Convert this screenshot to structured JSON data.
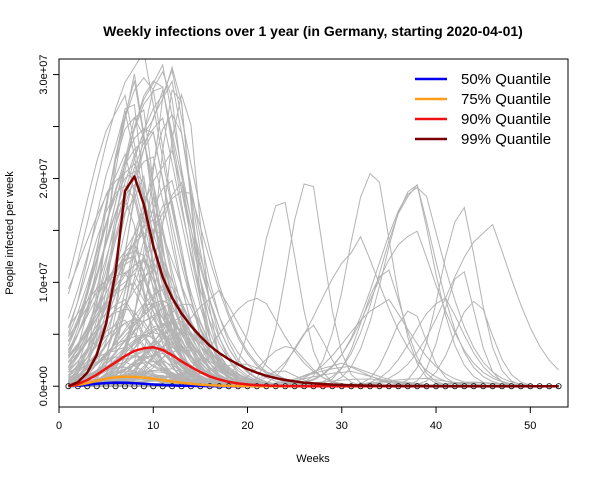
{
  "chart_data": {
    "type": "line",
    "title": "Weekly infections over 1 year (in Germany, starting 2020-04-01)",
    "xlabel": "Weeks",
    "ylabel": "People infected per week",
    "xlim": [
      0,
      54
    ],
    "ylim": [
      -2000000,
      31500000
    ],
    "x_ticks": [
      0,
      10,
      20,
      30,
      40,
      50
    ],
    "x_tick_labels": [
      "0",
      "10",
      "20",
      "30",
      "40",
      "50"
    ],
    "y_ticks": [
      0,
      10000000,
      20000000,
      30000000
    ],
    "y_tick_labels": [
      "0.0e+00",
      "1.0e+07",
      "2.0e+07",
      "3.0e+07"
    ],
    "y_minor_ticks": [
      5000000,
      15000000,
      25000000
    ],
    "legend_position": "top-right",
    "background_series": {
      "description_color": "#b3b3b3",
      "count": 150
    },
    "series": [
      {
        "name": "50% Quantile",
        "color": "#0000ee",
        "x": [
          1,
          2,
          3,
          4,
          5,
          6,
          7,
          8,
          9,
          10,
          11,
          12,
          13,
          14,
          15,
          16,
          17,
          18,
          19,
          20,
          21,
          22,
          23,
          24,
          25,
          26,
          27,
          28,
          29,
          30,
          31,
          32,
          33,
          34,
          35,
          36,
          37,
          38,
          39,
          40,
          41,
          42,
          43,
          44,
          45,
          46,
          47,
          48,
          49,
          50,
          51,
          52,
          53
        ],
        "values": [
          0,
          50000,
          130000,
          230000,
          310000,
          350000,
          340000,
          290000,
          230000,
          170000,
          120000,
          80000,
          50000,
          30000,
          18000,
          10000,
          6000,
          3000,
          2000,
          1000,
          0,
          0,
          0,
          0,
          0,
          0,
          0,
          0,
          0,
          0,
          0,
          0,
          0,
          0,
          0,
          0,
          0,
          0,
          0,
          0,
          0,
          0,
          0,
          0,
          0,
          0,
          0,
          0,
          0,
          0,
          0,
          0,
          0
        ]
      },
      {
        "name": "75% Quantile",
        "color": "#ff9c1a",
        "x": [
          1,
          2,
          3,
          4,
          5,
          6,
          7,
          8,
          9,
          10,
          11,
          12,
          13,
          14,
          15,
          16,
          17,
          18,
          19,
          20,
          21,
          22,
          23,
          24,
          25,
          26,
          27,
          28,
          29,
          30,
          31,
          32,
          33,
          34,
          35,
          36,
          37,
          38,
          39,
          40,
          41,
          42,
          43,
          44,
          45,
          46,
          47,
          48,
          49,
          50,
          51,
          52,
          53
        ],
        "values": [
          0,
          120000,
          300000,
          520000,
          720000,
          860000,
          920000,
          900000,
          830000,
          720000,
          590000,
          460000,
          340000,
          240000,
          160000,
          100000,
          60000,
          35000,
          20000,
          10000,
          5000,
          2000,
          0,
          0,
          0,
          0,
          0,
          0,
          0,
          0,
          0,
          0,
          0,
          0,
          0,
          0,
          0,
          0,
          0,
          0,
          0,
          0,
          0,
          0,
          0,
          0,
          0,
          0,
          0,
          0,
          0,
          0,
          0
        ]
      },
      {
        "name": "90% Quantile",
        "color": "#ee1111",
        "x": [
          1,
          2,
          3,
          4,
          5,
          6,
          7,
          8,
          9,
          10,
          11,
          12,
          13,
          14,
          15,
          16,
          17,
          18,
          19,
          20,
          21,
          22,
          23,
          24,
          25,
          26,
          27,
          28,
          29,
          30,
          31,
          32,
          33,
          34,
          35,
          36,
          37,
          38,
          39,
          40,
          41,
          42,
          43,
          44,
          45,
          46,
          47,
          48,
          49,
          50,
          51,
          52,
          53
        ],
        "values": [
          0,
          200000,
          600000,
          1100000,
          1700000,
          2300000,
          2900000,
          3400000,
          3650000,
          3750000,
          3500000,
          3000000,
          2400000,
          1850000,
          1350000,
          950000,
          650000,
          420000,
          270000,
          170000,
          100000,
          60000,
          35000,
          20000,
          10000,
          5000,
          0,
          0,
          0,
          0,
          0,
          0,
          0,
          0,
          0,
          0,
          0,
          0,
          0,
          0,
          0,
          0,
          0,
          0,
          0,
          0,
          0,
          0,
          0,
          0,
          0,
          0,
          0
        ]
      },
      {
        "name": "99% Quantile",
        "color": "#7a0000",
        "x": [
          1,
          2,
          3,
          4,
          5,
          6,
          7,
          8,
          9,
          10,
          11,
          12,
          13,
          14,
          15,
          16,
          17,
          18,
          19,
          20,
          21,
          22,
          23,
          24,
          25,
          26,
          27,
          28,
          29,
          30,
          31,
          32,
          33,
          34,
          35,
          36,
          37,
          38,
          39,
          40,
          41,
          42,
          43,
          44,
          45,
          46,
          47,
          48,
          49,
          50,
          51,
          52,
          53
        ],
        "values": [
          0,
          400000,
          1300000,
          3000000,
          6000000,
          11000000,
          18800000,
          20200000,
          17500000,
          13500000,
          10500000,
          8500000,
          7000000,
          5800000,
          4800000,
          3900000,
          3200000,
          2600000,
          2100000,
          1650000,
          1300000,
          1000000,
          780000,
          600000,
          460000,
          350000,
          270000,
          210000,
          160000,
          120000,
          90000,
          70000,
          50000,
          40000,
          30000,
          20000,
          15000,
          10000,
          8000,
          5000,
          3000,
          2000,
          1000,
          0,
          0,
          0,
          0,
          0,
          0,
          0,
          0,
          0,
          0
        ]
      }
    ]
  }
}
